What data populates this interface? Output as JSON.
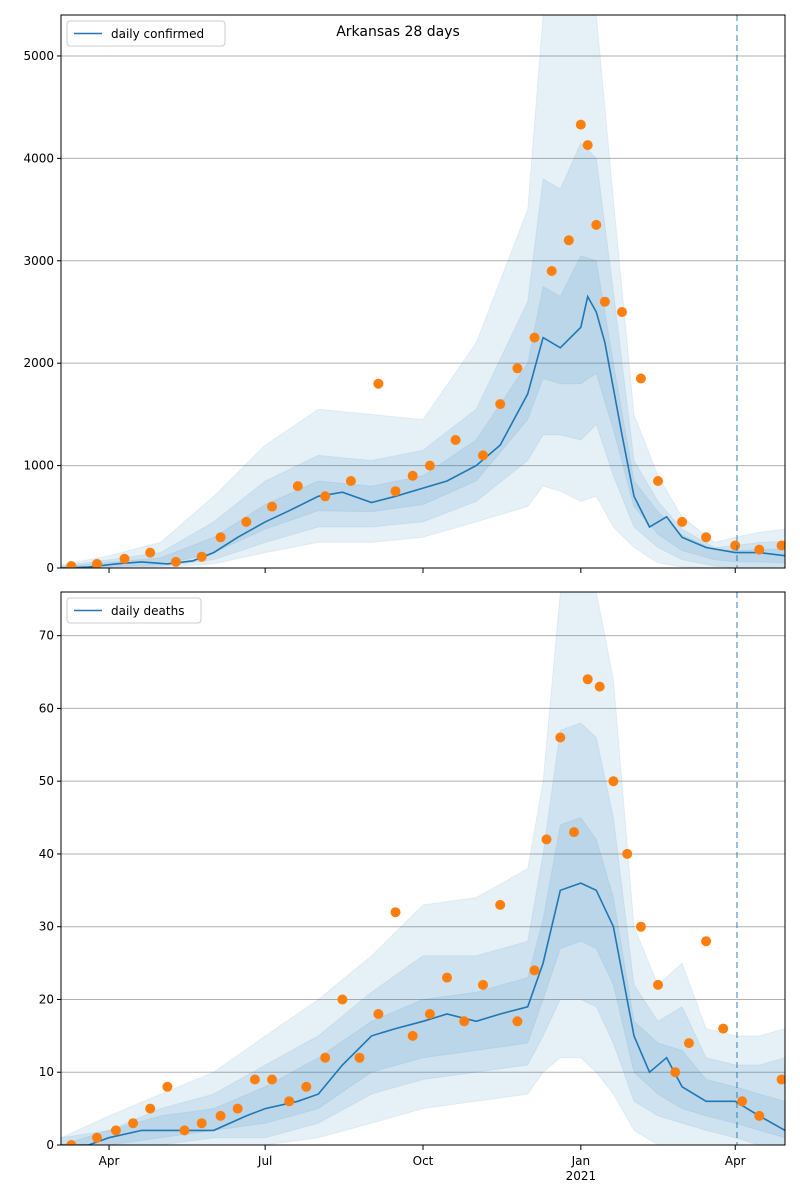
{
  "title": "Arkansas 28 days",
  "colors": {
    "median": "#1f77b4",
    "observed": "#ff7f0e",
    "band": "#1f77b4",
    "grid": "#b0b0b0",
    "forecast_line": "#1f77b4"
  },
  "x_axis": {
    "tick_labels": [
      "Apr",
      "Jul",
      "Oct",
      "Jan",
      "Apr"
    ],
    "tick_dates": [
      "2020-04-01",
      "2020-07-01",
      "2020-10-01",
      "2021-01-01",
      "2021-04-01"
    ],
    "year_label": "2021",
    "range": [
      "2020-03-04",
      "2021-04-30"
    ]
  },
  "forecast_start": "2021-04-02",
  "chart_data": [
    {
      "type": "line",
      "legend": "daily confirmed",
      "legend_position": "top-left",
      "grid": "horizontal",
      "ylim": [
        0,
        5400
      ],
      "yticks": [
        0,
        1000,
        2000,
        3000,
        4000,
        5000
      ],
      "series": [
        {
          "name": "daily confirmed",
          "role": "median",
          "x": [
            "2020-03-04",
            "2020-03-20",
            "2020-04-05",
            "2020-04-20",
            "2020-05-05",
            "2020-05-20",
            "2020-06-01",
            "2020-06-15",
            "2020-07-01",
            "2020-07-15",
            "2020-08-01",
            "2020-08-15",
            "2020-09-01",
            "2020-09-15",
            "2020-10-01",
            "2020-10-15",
            "2020-11-01",
            "2020-11-15",
            "2020-12-01",
            "2020-12-10",
            "2020-12-20",
            "2021-01-01",
            "2021-01-05",
            "2021-01-10",
            "2021-01-15",
            "2021-01-25",
            "2021-02-01",
            "2021-02-10",
            "2021-02-20",
            "2021-03-01",
            "2021-03-15",
            "2021-04-01",
            "2021-04-15",
            "2021-04-30"
          ],
          "values": [
            0,
            10,
            40,
            60,
            40,
            70,
            150,
            300,
            450,
            560,
            700,
            740,
            640,
            700,
            780,
            850,
            1000,
            1200,
            1700,
            2250,
            2150,
            2350,
            2650,
            2500,
            2200,
            1300,
            700,
            400,
            500,
            300,
            200,
            150,
            150,
            120
          ]
        },
        {
          "name": "observed",
          "role": "observed",
          "x": [
            "2020-03-10",
            "2020-03-25",
            "2020-04-10",
            "2020-04-25",
            "2020-05-10",
            "2020-05-25",
            "2020-06-05",
            "2020-06-20",
            "2020-07-05",
            "2020-07-20",
            "2020-08-05",
            "2020-08-20",
            "2020-09-05",
            "2020-09-15",
            "2020-09-25",
            "2020-10-05",
            "2020-10-20",
            "2020-11-05",
            "2020-11-15",
            "2020-11-25",
            "2020-12-05",
            "2020-12-15",
            "2020-12-25",
            "2021-01-01",
            "2021-01-05",
            "2021-01-10",
            "2021-01-15",
            "2021-01-25",
            "2021-02-05",
            "2021-02-15",
            "2021-03-01",
            "2021-03-15",
            "2021-04-01",
            "2021-04-15",
            "2021-04-28"
          ],
          "values": [
            20,
            40,
            90,
            150,
            60,
            110,
            300,
            450,
            600,
            800,
            700,
            850,
            1800,
            750,
            900,
            1000,
            1250,
            1100,
            1600,
            1950,
            2250,
            2900,
            3200,
            4330,
            4130,
            3350,
            2600,
            2500,
            1850,
            850,
            450,
            300,
            220,
            180,
            220
          ]
        }
      ],
      "bands": [
        {
          "name": "band-outer",
          "x": [
            "2020-03-04",
            "2020-04-01",
            "2020-05-01",
            "2020-06-01",
            "2020-07-01",
            "2020-08-01",
            "2020-09-01",
            "2020-10-01",
            "2020-11-01",
            "2020-12-01",
            "2020-12-10",
            "2020-12-20",
            "2021-01-01",
            "2021-01-10",
            "2021-01-20",
            "2021-02-01",
            "2021-02-15",
            "2021-03-01",
            "2021-03-20",
            "2021-04-01",
            "2021-04-15",
            "2021-04-30"
          ],
          "lower": [
            0,
            0,
            0,
            40,
            150,
            250,
            250,
            300,
            450,
            600,
            800,
            750,
            650,
            700,
            400,
            200,
            50,
            10,
            0,
            0,
            0,
            0
          ],
          "upper": [
            30,
            120,
            250,
            700,
            1200,
            1550,
            1500,
            1450,
            2200,
            3500,
            5400,
            5400,
            5400,
            5400,
            3600,
            1500,
            900,
            500,
            250,
            300,
            350,
            380
          ]
        },
        {
          "name": "band-middle",
          "x": [
            "2020-03-04",
            "2020-04-01",
            "2020-05-01",
            "2020-06-01",
            "2020-07-01",
            "2020-08-01",
            "2020-09-01",
            "2020-10-01",
            "2020-11-01",
            "2020-12-01",
            "2020-12-10",
            "2020-12-20",
            "2021-01-01",
            "2021-01-10",
            "2021-01-20",
            "2021-02-01",
            "2021-02-15",
            "2021-03-01",
            "2021-03-20",
            "2021-04-01",
            "2021-04-15",
            "2021-04-30"
          ],
          "lower": [
            0,
            5,
            15,
            80,
            250,
            400,
            400,
            450,
            650,
            1050,
            1300,
            1300,
            1250,
            1400,
            900,
            400,
            200,
            80,
            20,
            0,
            0,
            0
          ],
          "upper": [
            20,
            80,
            150,
            450,
            850,
            1100,
            1050,
            1150,
            1550,
            2600,
            3800,
            3700,
            4150,
            4000,
            2700,
            1050,
            650,
            380,
            200,
            220,
            250,
            260
          ]
        },
        {
          "name": "band-inner",
          "x": [
            "2020-03-04",
            "2020-04-01",
            "2020-05-01",
            "2020-06-01",
            "2020-07-01",
            "2020-08-01",
            "2020-09-01",
            "2020-10-01",
            "2020-11-01",
            "2020-12-01",
            "2020-12-10",
            "2020-12-20",
            "2021-01-01",
            "2021-01-10",
            "2021-01-20",
            "2021-02-01",
            "2021-02-15",
            "2021-03-01",
            "2021-03-20",
            "2021-04-01",
            "2021-04-15",
            "2021-04-30"
          ],
          "lower": [
            0,
            15,
            30,
            150,
            380,
            560,
            550,
            620,
            850,
            1450,
            1850,
            1800,
            1800,
            1900,
            1350,
            600,
            330,
            170,
            80,
            60,
            60,
            50
          ],
          "upper": [
            10,
            55,
            100,
            300,
            620,
            850,
            800,
            900,
            1250,
            2000,
            2750,
            2650,
            3050,
            3000,
            2000,
            850,
            550,
            320,
            180,
            170,
            180,
            190
          ]
        }
      ]
    },
    {
      "type": "line",
      "legend": "daily deaths",
      "legend_position": "top-left",
      "grid": "horizontal",
      "ylim": [
        0,
        76
      ],
      "yticks": [
        0,
        10,
        20,
        30,
        40,
        50,
        60,
        70
      ],
      "series": [
        {
          "name": "daily deaths",
          "role": "median",
          "x": [
            "2020-03-04",
            "2020-03-20",
            "2020-04-01",
            "2020-04-20",
            "2020-05-10",
            "2020-06-01",
            "2020-06-20",
            "2020-07-01",
            "2020-07-20",
            "2020-08-01",
            "2020-08-15",
            "2020-09-01",
            "2020-09-15",
            "2020-10-01",
            "2020-10-15",
            "2020-11-01",
            "2020-11-15",
            "2020-12-01",
            "2020-12-10",
            "2020-12-20",
            "2021-01-01",
            "2021-01-10",
            "2021-01-20",
            "2021-02-01",
            "2021-02-10",
            "2021-02-20",
            "2021-03-01",
            "2021-03-15",
            "2021-04-01",
            "2021-04-15",
            "2021-04-30"
          ],
          "values": [
            0,
            0,
            1,
            2,
            2,
            2,
            4,
            5,
            6,
            7,
            11,
            15,
            16,
            17,
            18,
            17,
            18,
            19,
            25,
            35,
            36,
            35,
            30,
            15,
            10,
            12,
            8,
            6,
            6,
            4,
            2
          ]
        },
        {
          "name": "observed",
          "role": "observed",
          "x": [
            "2020-03-10",
            "2020-03-25",
            "2020-04-05",
            "2020-04-15",
            "2020-04-25",
            "2020-05-05",
            "2020-05-15",
            "2020-05-25",
            "2020-06-05",
            "2020-06-15",
            "2020-06-25",
            "2020-07-05",
            "2020-07-15",
            "2020-07-25",
            "2020-08-05",
            "2020-08-15",
            "2020-08-25",
            "2020-09-05",
            "2020-09-15",
            "2020-09-25",
            "2020-10-05",
            "2020-10-15",
            "2020-10-25",
            "2020-11-05",
            "2020-11-15",
            "2020-11-25",
            "2020-12-05",
            "2020-12-12",
            "2020-12-20",
            "2020-12-28",
            "2021-01-05",
            "2021-01-12",
            "2021-01-20",
            "2021-01-28",
            "2021-02-05",
            "2021-02-15",
            "2021-02-25",
            "2021-03-05",
            "2021-03-15",
            "2021-03-25",
            "2021-04-05",
            "2021-04-15",
            "2021-04-28"
          ],
          "values": [
            0,
            1,
            2,
            3,
            5,
            8,
            2,
            3,
            4,
            5,
            9,
            9,
            6,
            8,
            12,
            20,
            12,
            18,
            32,
            15,
            18,
            23,
            17,
            22,
            33,
            17,
            24,
            42,
            56,
            43,
            64,
            63,
            50,
            40,
            30,
            22,
            10,
            14,
            28,
            16,
            6,
            4,
            9
          ]
        }
      ],
      "bands": [
        {
          "name": "band-outer",
          "x": [
            "2020-03-04",
            "2020-04-01",
            "2020-05-01",
            "2020-06-01",
            "2020-07-01",
            "2020-08-01",
            "2020-09-01",
            "2020-10-01",
            "2020-11-01",
            "2020-12-01",
            "2020-12-10",
            "2020-12-20",
            "2021-01-01",
            "2021-01-10",
            "2021-01-20",
            "2021-02-01",
            "2021-02-15",
            "2021-03-01",
            "2021-03-15",
            "2021-04-01",
            "2021-04-15",
            "2021-04-30"
          ],
          "lower": [
            0,
            0,
            0,
            0,
            0,
            1,
            3,
            5,
            6,
            7,
            10,
            12,
            12,
            10,
            7,
            2,
            0,
            0,
            0,
            0,
            0,
            0
          ],
          "upper": [
            1,
            4,
            7,
            10,
            15,
            20,
            26,
            33,
            34,
            38,
            50,
            76,
            76,
            76,
            64,
            30,
            22,
            25,
            16,
            15,
            15,
            16
          ]
        },
        {
          "name": "band-middle",
          "x": [
            "2020-03-04",
            "2020-04-01",
            "2020-05-01",
            "2020-06-01",
            "2020-07-01",
            "2020-08-01",
            "2020-09-01",
            "2020-10-01",
            "2020-11-01",
            "2020-12-01",
            "2020-12-10",
            "2020-12-20",
            "2021-01-01",
            "2021-01-10",
            "2021-01-20",
            "2021-02-01",
            "2021-02-15",
            "2021-03-01",
            "2021-03-15",
            "2021-04-01",
            "2021-04-15",
            "2021-04-30"
          ],
          "lower": [
            0,
            0,
            0,
            1,
            1,
            3,
            7,
            9,
            10,
            11,
            15,
            20,
            20,
            19,
            14,
            6,
            4,
            3,
            2,
            1,
            0,
            0
          ],
          "upper": [
            1,
            2,
            5,
            7,
            11,
            15,
            21,
            26,
            26,
            28,
            40,
            57,
            58,
            56,
            45,
            22,
            17,
            19,
            12,
            11,
            11,
            12
          ]
        },
        {
          "name": "band-inner",
          "x": [
            "2020-03-04",
            "2020-04-01",
            "2020-05-01",
            "2020-06-01",
            "2020-07-01",
            "2020-08-01",
            "2020-09-01",
            "2020-10-01",
            "2020-11-01",
            "2020-12-01",
            "2020-12-10",
            "2020-12-20",
            "2021-01-01",
            "2021-01-10",
            "2021-01-20",
            "2021-02-01",
            "2021-02-15",
            "2021-03-01",
            "2021-03-15",
            "2021-04-01",
            "2021-04-15",
            "2021-04-30"
          ],
          "lower": [
            0,
            0,
            1,
            2,
            3,
            5,
            10,
            12,
            13,
            14,
            20,
            27,
            28,
            27,
            22,
            10,
            7,
            5,
            4,
            3,
            2,
            1
          ],
          "upper": [
            0,
            2,
            4,
            5,
            8,
            12,
            17,
            20,
            21,
            23,
            31,
            44,
            45,
            42,
            34,
            17,
            14,
            13,
            9,
            8,
            7,
            6
          ]
        }
      ]
    }
  ]
}
